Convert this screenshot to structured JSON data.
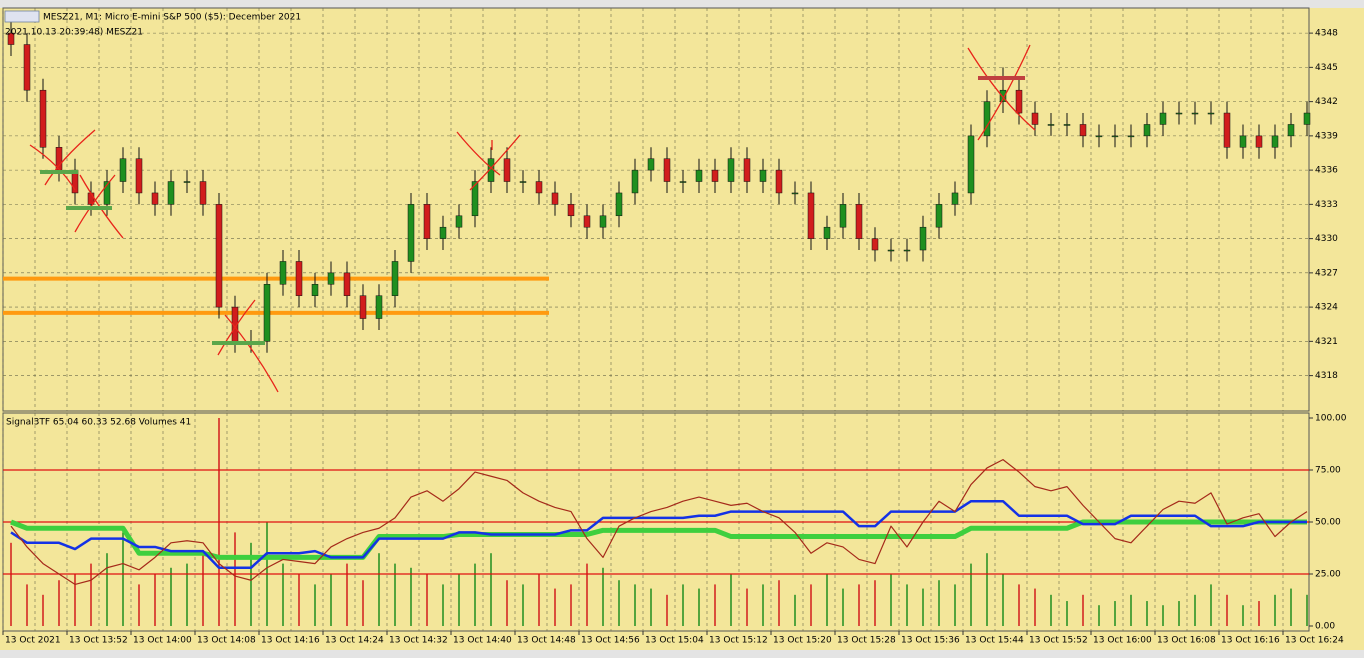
{
  "chart_data": [
    {
      "type": "candlestick",
      "title": "MESZ21, M1:  Micro E-mini S&P 500 ($5): December 2021",
      "subtitle": "2021.10.13 20:39:48) MESZ21",
      "categories": [
        "13 Oct 2021",
        null,
        null,
        null,
        "13 Oct 13:52",
        null,
        null,
        null,
        "13 Oct 14:00",
        null,
        null,
        null,
        "13 Oct 14:08",
        null,
        null,
        null,
        "13 Oct 14:16",
        null,
        null,
        null,
        "13 Oct 14:24",
        null,
        null,
        null,
        "13 Oct 14:32",
        null,
        null,
        null,
        "13 Oct 14:40",
        null,
        null,
        null,
        "13 Oct 14:48",
        null,
        null,
        null,
        "13 Oct 14:56",
        null,
        null,
        null,
        "13 Oct 15:04",
        null,
        null,
        null,
        "13 Oct 15:12",
        null,
        null,
        null,
        "13 Oct 15:20",
        null,
        null,
        null,
        "13 Oct 15:28",
        null,
        null,
        null,
        "13 Oct 15:36",
        null,
        null,
        null,
        "13 Oct 15:44",
        null,
        null,
        null,
        "13 Oct 15:52",
        null,
        null,
        null,
        "13 Oct 16:00",
        null,
        null,
        null,
        "13 Oct 16:08",
        null,
        null,
        null,
        "13 Oct 16:16",
        null,
        null,
        null,
        "13 Oct 16:24",
        null
      ],
      "open": [
        4348,
        4347,
        4343,
        4338,
        4336,
        4334,
        4333,
        4335,
        4337,
        4334,
        4333,
        4335,
        4335,
        4333,
        4324,
        4321,
        4321,
        4326,
        4328,
        4325,
        4326,
        4327,
        4325,
        4323,
        4325,
        4328,
        4333,
        4330,
        4331,
        4332,
        4335,
        4337,
        4335,
        4335,
        4334,
        4333,
        4332,
        4331,
        4332,
        4334,
        4336,
        4337,
        4335,
        4335,
        4336,
        4335,
        4337,
        4335,
        4336,
        4334,
        4334,
        4330,
        4331,
        4333,
        4330,
        4329,
        4329,
        4329,
        4331,
        4333,
        4334,
        4339,
        4342,
        4343,
        4341,
        4340,
        4340,
        4340,
        4339,
        4339,
        4339,
        4339,
        4340,
        4341,
        4341,
        4341,
        4341,
        4338,
        4339,
        4338,
        4339,
        4340
      ],
      "high": [
        4349,
        4348,
        4344,
        4339,
        4337,
        4335,
        4336,
        4338,
        4338,
        4335,
        4336,
        4336,
        4336,
        4334,
        4325,
        4322,
        4327,
        4329,
        4329,
        4327,
        4328,
        4328,
        4326,
        4326,
        4329,
        4334,
        4334,
        4332,
        4333,
        4336,
        4338,
        4338,
        4336,
        4336,
        4335,
        4334,
        4333,
        4333,
        4335,
        4337,
        4338,
        4338,
        4336,
        4337,
        4337,
        4338,
        4338,
        4337,
        4337,
        4335,
        4335,
        4332,
        4334,
        4334,
        4331,
        4330,
        4330,
        4332,
        4334,
        4335,
        4340,
        4343,
        4345,
        4344,
        4342,
        4341,
        4341,
        4341,
        4340,
        4340,
        4340,
        4341,
        4342,
        4342,
        4342,
        4342,
        4342,
        4340,
        4340,
        4340,
        4341,
        4342
      ],
      "low": [
        4346,
        4342,
        4337,
        4335,
        4333,
        4332,
        4332,
        4334,
        4333,
        4332,
        4332,
        4334,
        4332,
        4323,
        4320,
        4320,
        4320,
        4325,
        4324,
        4324,
        4325,
        4324,
        4322,
        4322,
        4324,
        4327,
        4329,
        4329,
        4330,
        4331,
        4334,
        4334,
        4334,
        4333,
        4332,
        4331,
        4330,
        4330,
        4331,
        4333,
        4335,
        4334,
        4334,
        4334,
        4334,
        4334,
        4334,
        4334,
        4333,
        4333,
        4329,
        4329,
        4330,
        4329,
        4328,
        4328,
        4328,
        4328,
        4330,
        4332,
        4333,
        4338,
        4341,
        4340,
        4339,
        4339,
        4339,
        4338,
        4338,
        4338,
        4338,
        4338,
        4339,
        4340,
        4340,
        4340,
        4337,
        4337,
        4337,
        4337,
        4338,
        4339
      ],
      "close": [
        4347,
        4343,
        4338,
        4336,
        4334,
        4333,
        4335,
        4337,
        4334,
        4333,
        4335,
        4335,
        4333,
        4324,
        4321,
        4321,
        4326,
        4328,
        4325,
        4326,
        4327,
        4325,
        4323,
        4325,
        4328,
        4333,
        4330,
        4331,
        4332,
        4335,
        4337,
        4335,
        4335,
        4334,
        4333,
        4332,
        4331,
        4332,
        4334,
        4336,
        4337,
        4335,
        4335,
        4336,
        4335,
        4337,
        4335,
        4336,
        4334,
        4334,
        4330,
        4331,
        4333,
        4330,
        4329,
        4329,
        4329,
        4331,
        4333,
        4334,
        4339,
        4342,
        4343,
        4341,
        4340,
        4340,
        4340,
        4339,
        4339,
        4339,
        4339,
        4340,
        4341,
        4341,
        4341,
        4341,
        4338,
        4339,
        4338,
        4339,
        4340,
        4341
      ],
      "up_color": "#1f8f1f",
      "down_color": "#d11d1d",
      "horizontal_lines": [
        {
          "value": 4326.5,
          "color": "#ff9a10"
        },
        {
          "value": 4323.5,
          "color": "#ff9a10"
        }
      ],
      "ylim": [
        4314.9,
        4350.2
      ],
      "yticks": [
        4318,
        4321,
        4324,
        4327,
        4330,
        4333,
        4336,
        4339,
        4342,
        4345,
        4348
      ],
      "grid": true
    },
    {
      "type": "line",
      "title": "Signal3TF 65.04 60.33 52.68 Volumes 41",
      "levels": [
        75,
        50,
        25
      ],
      "level_color": "#e01010",
      "series": [
        {
          "color": "#3ecf3e",
          "width": 5,
          "values": [
            50,
            47,
            47,
            47,
            47,
            47,
            47,
            47,
            35,
            35,
            35,
            35,
            35,
            33,
            33,
            33,
            33,
            33,
            33,
            33,
            33,
            33,
            33,
            43,
            43,
            43,
            43,
            43,
            44,
            44,
            44,
            44,
            44,
            44,
            44,
            44,
            44,
            46,
            46,
            46,
            46,
            46,
            46,
            46,
            46,
            43,
            43,
            43,
            43,
            43,
            43,
            43,
            43,
            43,
            43,
            43,
            43,
            43,
            43,
            43,
            47,
            47,
            47,
            47,
            47,
            47,
            47,
            50,
            50,
            50,
            50,
            50,
            50,
            50,
            50,
            50,
            50,
            50,
            50,
            50,
            50,
            50
          ]
        },
        {
          "color": "#1432e6",
          "width": 2.5,
          "values": [
            45,
            40,
            40,
            40,
            37,
            42,
            42,
            42,
            38,
            38,
            36,
            36,
            36,
            28,
            28,
            28,
            35,
            35,
            35,
            36,
            33,
            33,
            33,
            42,
            42,
            42,
            42,
            42,
            45,
            45,
            44,
            44,
            44,
            44,
            44,
            46,
            46,
            52,
            52,
            52,
            52,
            52,
            52,
            53,
            53,
            55,
            55,
            55,
            55,
            55,
            55,
            55,
            55,
            48,
            48,
            55,
            55,
            55,
            55,
            55,
            60,
            60,
            60,
            53,
            53,
            53,
            53,
            49,
            49,
            49,
            53,
            53,
            53,
            53,
            53,
            48,
            48,
            48,
            50,
            50,
            50,
            50
          ]
        },
        {
          "color": "#a52a1a",
          "width": 1.2,
          "values": [
            48,
            38,
            30,
            25,
            20,
            22,
            28,
            30,
            27,
            33,
            40,
            41,
            40,
            30,
            24,
            22,
            28,
            32,
            31,
            30,
            38,
            42,
            45,
            47,
            52,
            62,
            65,
            60,
            66,
            74,
            72,
            70,
            64,
            60,
            57,
            55,
            42,
            33,
            48,
            52,
            55,
            57,
            60,
            62,
            60,
            58,
            59,
            55,
            52,
            45,
            35,
            40,
            38,
            32,
            30,
            48,
            38,
            50,
            60,
            55,
            68,
            76,
            80,
            74,
            67,
            65,
            67,
            58,
            50,
            42,
            40,
            48,
            56,
            60,
            59,
            64,
            49,
            52,
            54,
            43,
            50,
            55
          ]
        }
      ],
      "volumes": [
        40,
        20,
        15,
        22,
        25,
        30,
        35,
        45,
        20,
        25,
        28,
        30,
        35,
        100,
        45,
        40,
        50,
        30,
        25,
        20,
        25,
        30,
        22,
        35,
        30,
        28,
        25,
        20,
        25,
        30,
        35,
        22,
        20,
        25,
        18,
        20,
        30,
        28,
        22,
        20,
        18,
        15,
        20,
        18,
        20,
        25,
        18,
        20,
        22,
        15,
        20,
        25,
        18,
        20,
        22,
        25,
        20,
        18,
        22,
        20,
        30,
        35,
        25,
        20,
        18,
        15,
        12,
        15,
        10,
        12,
        15,
        12,
        10,
        12,
        15,
        20,
        15,
        10,
        12,
        15,
        18,
        15
      ],
      "ylim": [
        -2.4,
        102.4
      ],
      "yticks": [
        {
          "value": 0,
          "label": "0.00"
        },
        {
          "value": 25,
          "label": "25.00"
        },
        {
          "value": 50,
          "label": "50.00"
        },
        {
          "value": 75,
          "label": "75.00"
        },
        {
          "value": 100,
          "label": "100.00"
        }
      ]
    }
  ]
}
